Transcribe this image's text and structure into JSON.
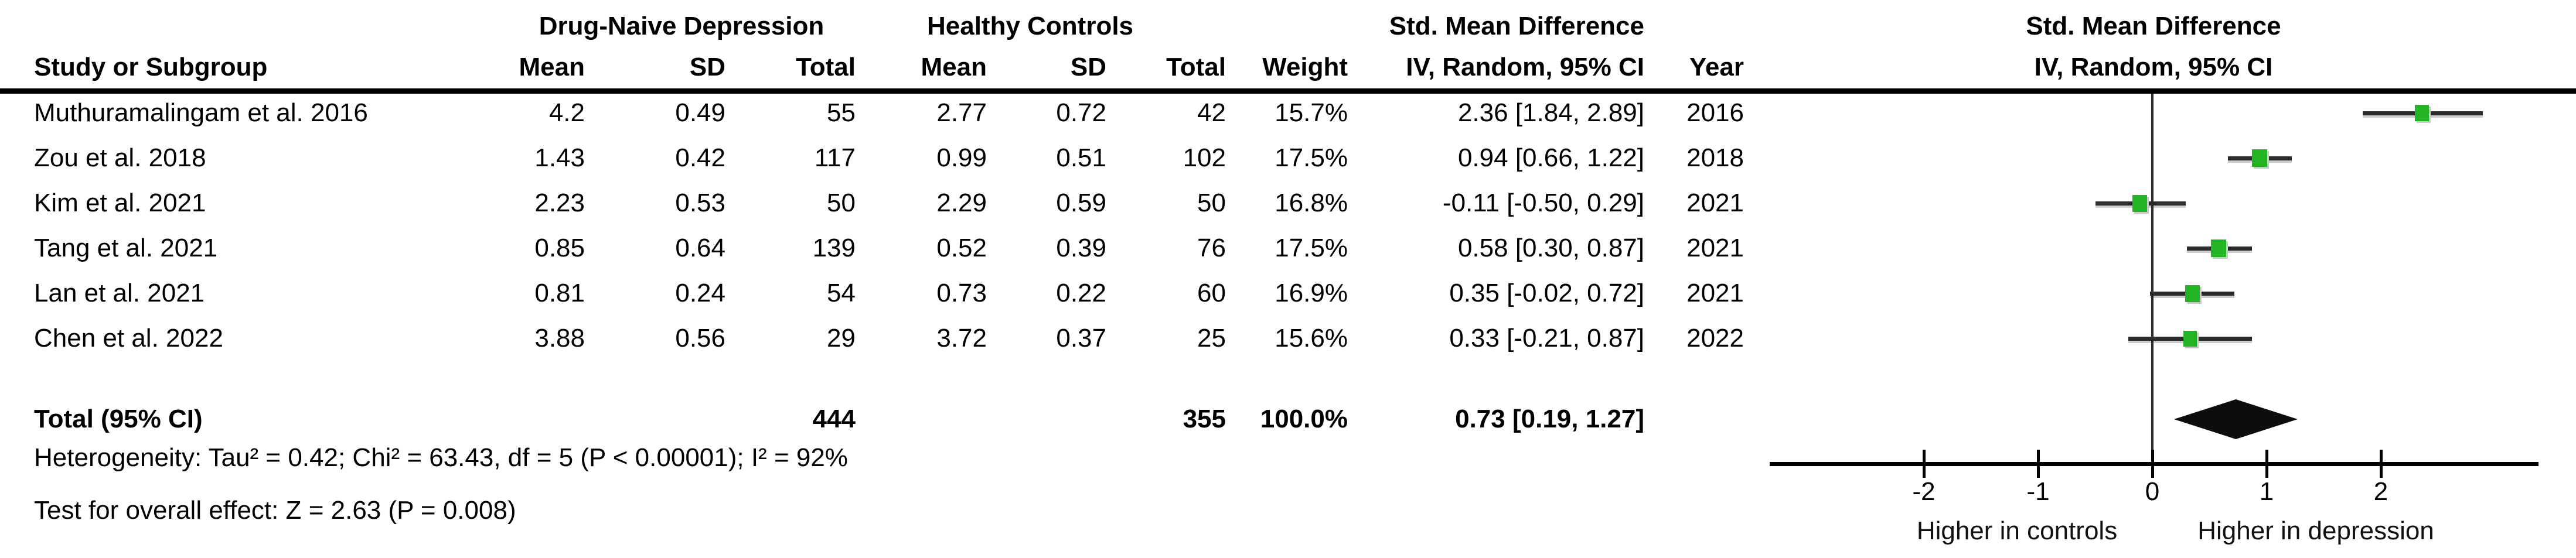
{
  "headers": {
    "group1": "Drug-Naive Depression",
    "group2": "Healthy Controls",
    "smd_col_title": "Std. Mean Difference",
    "method_col_title": "IV, Random, 95% CI",
    "plot_title": "Std. Mean Difference",
    "plot_subtitle": "IV, Random, 95% CI",
    "study": "Study or Subgroup",
    "mean": "Mean",
    "sd": "SD",
    "total": "Total",
    "weight": "Weight",
    "year": "Year"
  },
  "totals": {
    "label": "Total (95% CI)",
    "total1": "444",
    "total2": "355",
    "weight": "100.0%",
    "ci_text": "0.73 [0.19, 1.27]"
  },
  "footnotes": {
    "heterogeneity": "Heterogeneity: Tau² = 0.42; Chi² = 63.43, df = 5 (P < 0.00001); I² = 92%",
    "overall_effect": "Test for overall effect: Z = 2.63 (P = 0.008)"
  },
  "colors": {
    "marker_green": "#22b422",
    "ci_line": "#2b2b2b",
    "diamond": "#0d0d0d",
    "axis": "#000000",
    "text": "#000000"
  },
  "chart_data": {
    "type": "scatter",
    "plot_style": "forest",
    "title": "Std. Mean Difference",
    "subtitle": "IV, Random, 95% CI",
    "effect_measure": "Std. Mean Difference, IV, Random, 95% CI",
    "axis": {
      "ticks": [
        -2,
        -1,
        0,
        1,
        2
      ],
      "tick_labels": [
        "-2",
        "-1",
        "0",
        "1",
        "2"
      ],
      "zero_reference_line": true,
      "left_direction_label": "Higher in controls",
      "right_direction_label": "Higher in depression"
    },
    "studies": [
      {
        "name": "Muthuramalingam et al. 2016",
        "mean1": "4.2",
        "sd1": "0.49",
        "total1": "55",
        "mean2": "2.77",
        "sd2": "0.72",
        "total2": "42",
        "weight": "15.7%",
        "ci_text": "2.36 [1.84, 2.89]",
        "year": "2016",
        "effect": 2.36,
        "ci_low": 1.84,
        "ci_high": 2.89,
        "weight_val": 15.7
      },
      {
        "name": "Zou et al. 2018",
        "mean1": "1.43",
        "sd1": "0.42",
        "total1": "117",
        "mean2": "0.99",
        "sd2": "0.51",
        "total2": "102",
        "weight": "17.5%",
        "ci_text": "0.94 [0.66, 1.22]",
        "year": "2018",
        "effect": 0.94,
        "ci_low": 0.66,
        "ci_high": 1.22,
        "weight_val": 17.5
      },
      {
        "name": "Kim et al. 2021",
        "mean1": "2.23",
        "sd1": "0.53",
        "total1": "50",
        "mean2": "2.29",
        "sd2": "0.59",
        "total2": "50",
        "weight": "16.8%",
        "ci_text": "-0.11 [-0.50, 0.29]",
        "year": "2021",
        "effect": -0.11,
        "ci_low": -0.5,
        "ci_high": 0.29,
        "weight_val": 16.8
      },
      {
        "name": "Tang et al. 2021",
        "mean1": "0.85",
        "sd1": "0.64",
        "total1": "139",
        "mean2": "0.52",
        "sd2": "0.39",
        "total2": "76",
        "weight": "17.5%",
        "ci_text": "0.58 [0.30, 0.87]",
        "year": "2021",
        "effect": 0.58,
        "ci_low": 0.3,
        "ci_high": 0.87,
        "weight_val": 17.5
      },
      {
        "name": "Lan et al. 2021",
        "mean1": "0.81",
        "sd1": "0.24",
        "total1": "54",
        "mean2": "0.73",
        "sd2": "0.22",
        "total2": "60",
        "weight": "16.9%",
        "ci_text": "0.35 [-0.02, 0.72]",
        "year": "2021",
        "effect": 0.35,
        "ci_low": -0.02,
        "ci_high": 0.72,
        "weight_val": 16.9
      },
      {
        "name": "Chen et al. 2022",
        "mean1": "3.88",
        "sd1": "0.56",
        "total1": "29",
        "mean2": "3.72",
        "sd2": "0.37",
        "total2": "25",
        "weight": "15.6%",
        "ci_text": "0.33 [-0.21, 0.87]",
        "year": "2022",
        "effect": 0.33,
        "ci_low": -0.21,
        "ci_high": 0.87,
        "weight_val": 15.6
      }
    ],
    "overall": {
      "label": "Total (95% CI)",
      "effect": 0.73,
      "ci_low": 0.19,
      "ci_high": 1.27,
      "total1": 444,
      "total2": 355,
      "weight": "100.0%"
    },
    "heterogeneity": {
      "tau2": 0.42,
      "chi2": 63.43,
      "df": 5,
      "p": "< 0.00001",
      "i2": "92%"
    },
    "overall_effect_test": {
      "z": 2.63,
      "p": "0.008"
    }
  }
}
